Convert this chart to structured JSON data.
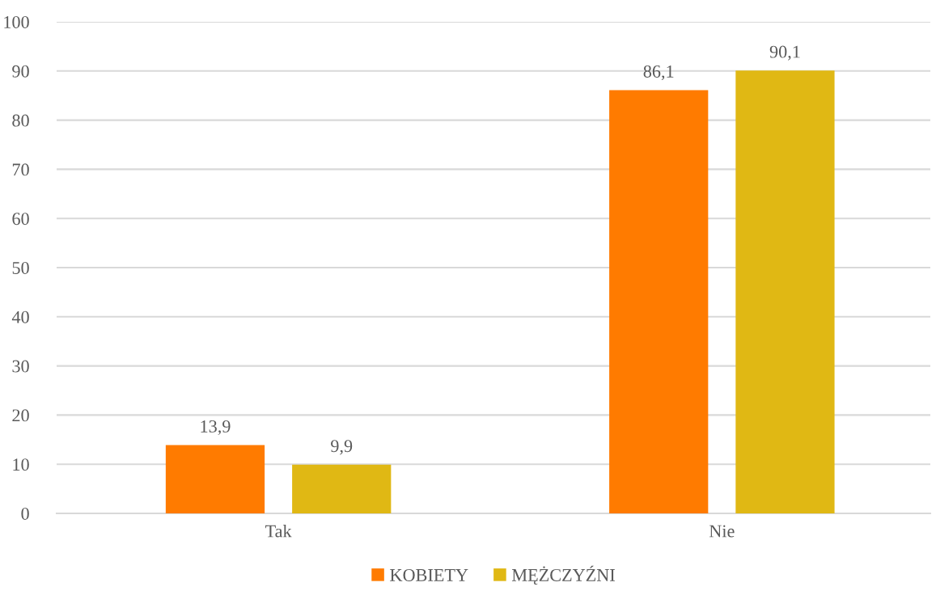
{
  "chart_data": {
    "type": "bar",
    "categories": [
      "Tak",
      "Nie"
    ],
    "series": [
      {
        "name": "KOBIETY",
        "color": "#ff7b00",
        "values": [
          13.9,
          86.1
        ],
        "value_labels": [
          "13,9",
          "86,1"
        ]
      },
      {
        "name": "MĘŻCZYŹNI",
        "color": "#e0b814",
        "values": [
          9.9,
          90.1
        ],
        "value_labels": [
          "9,9",
          "90,1"
        ]
      }
    ],
    "ylim": [
      0,
      100
    ],
    "yticks": [
      0,
      10,
      20,
      30,
      40,
      50,
      60,
      70,
      80,
      90,
      100
    ],
    "grid": "y",
    "legend": "bottom"
  }
}
